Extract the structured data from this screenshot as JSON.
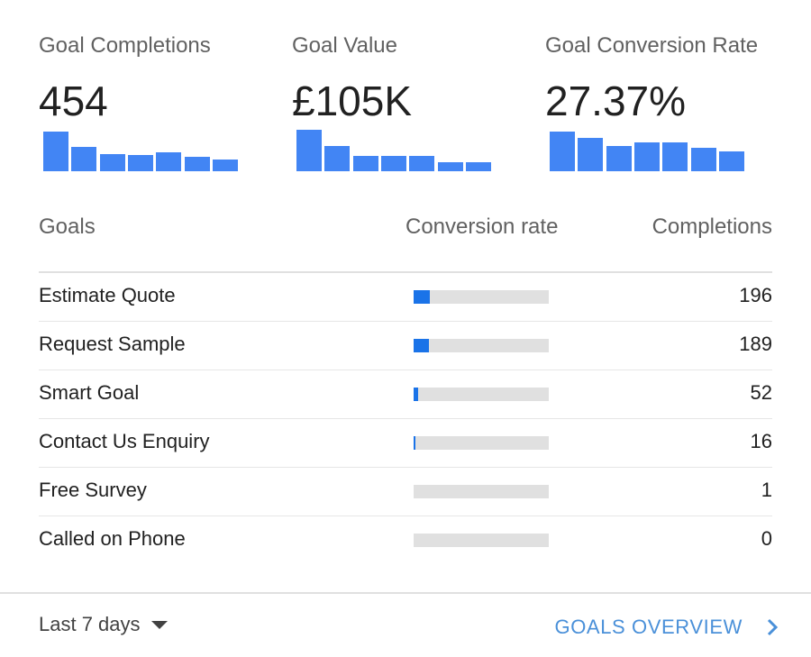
{
  "metrics": [
    {
      "label": "Goal Completions",
      "value": "454",
      "spark": [
        44,
        27,
        19,
        18,
        21,
        16,
        13
      ]
    },
    {
      "label": "Goal Value",
      "value": "£105K",
      "spark": [
        46,
        28,
        17,
        17,
        17,
        10,
        10
      ]
    },
    {
      "label": "Goal Conversion Rate",
      "value": "27.37%",
      "spark": [
        44,
        37,
        28,
        32,
        32,
        26,
        22
      ]
    }
  ],
  "colors": {
    "spark": "#4285f4",
    "rate_fill": "#1a73e8",
    "rate_track": "#e0e0e0",
    "link": "#4a90d9"
  },
  "table": {
    "headers": {
      "goals": "Goals",
      "rate": "Conversion rate",
      "completions": "Completions"
    },
    "rows": [
      {
        "goal": "Estimate Quote",
        "rate_fraction": 0.12,
        "completions": "196"
      },
      {
        "goal": "Request Sample",
        "rate_fraction": 0.11,
        "completions": "189"
      },
      {
        "goal": "Smart Goal",
        "rate_fraction": 0.033,
        "completions": "52"
      },
      {
        "goal": "Contact Us Enquiry",
        "rate_fraction": 0.01,
        "completions": "16"
      },
      {
        "goal": "Free Survey",
        "rate_fraction": 0,
        "completions": "1"
      },
      {
        "goal": "Called on Phone",
        "rate_fraction": 0,
        "completions": "0"
      }
    ]
  },
  "footer": {
    "date_range": "Last 7 days",
    "date_range_icon": "caret-down-icon",
    "overview_link": "GOALS OVERVIEW",
    "overview_icon": "chevron-right-icon"
  }
}
